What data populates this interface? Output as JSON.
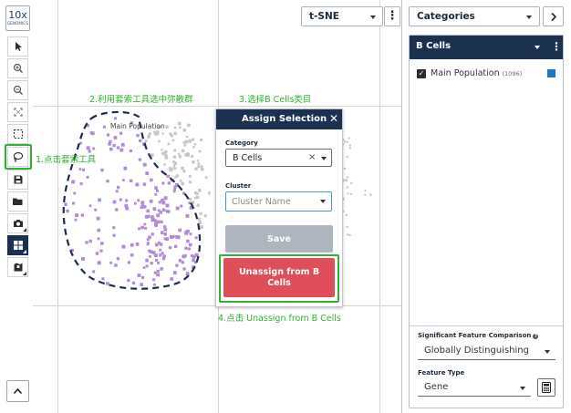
{
  "app": {
    "logo_line1": "10x",
    "logo_line2": "GENOMICS"
  },
  "toolbar": {
    "tools": [
      "pointer-icon",
      "zoom-in-icon",
      "zoom-out-icon",
      "fit-view-icon",
      "box-select-icon",
      "lasso-icon",
      "save-icon",
      "folder-icon",
      "camera-icon",
      "layout-grid-icon",
      "map-pin-icon"
    ],
    "active_tool": "lasso-icon",
    "expand_icon": "chevron-up-icon"
  },
  "projection": {
    "selected": "t-SNE",
    "more_icon": "kebab-icon"
  },
  "plot": {
    "population_label": "Main Population",
    "selected_color": "#b28ad8",
    "unselected_color": "#c7c7c7",
    "lasso_color": "#1b2e4e"
  },
  "annotations": {
    "step1": "1.点击套索工具",
    "step2": "2.利用套索工具选中弥散群",
    "step3": "3.选择B Cells类目",
    "step4": "4.点击 Unassign from B Cells",
    "color": "#2fb12f"
  },
  "modal": {
    "title": "Assign Selection",
    "category_label": "Category",
    "category_value": "B Cells",
    "cluster_label": "Cluster",
    "cluster_placeholder": "Cluster Name",
    "save_label": "Save",
    "unassign_label": "Unassign from B Cells"
  },
  "right_panel": {
    "categories_select": "Categories",
    "next_icon": "chevron-right-icon",
    "header_title": "B Cells",
    "clusters": [
      {
        "name": "Main Population",
        "count": "(1096)",
        "checked": true,
        "color": "#1b78c5"
      }
    ],
    "feature_comparison_label": "Significant Feature Comparison",
    "feature_comparison_value": "Globally Distinguishing",
    "feature_type_label": "Feature Type",
    "feature_type_value": "Gene"
  }
}
